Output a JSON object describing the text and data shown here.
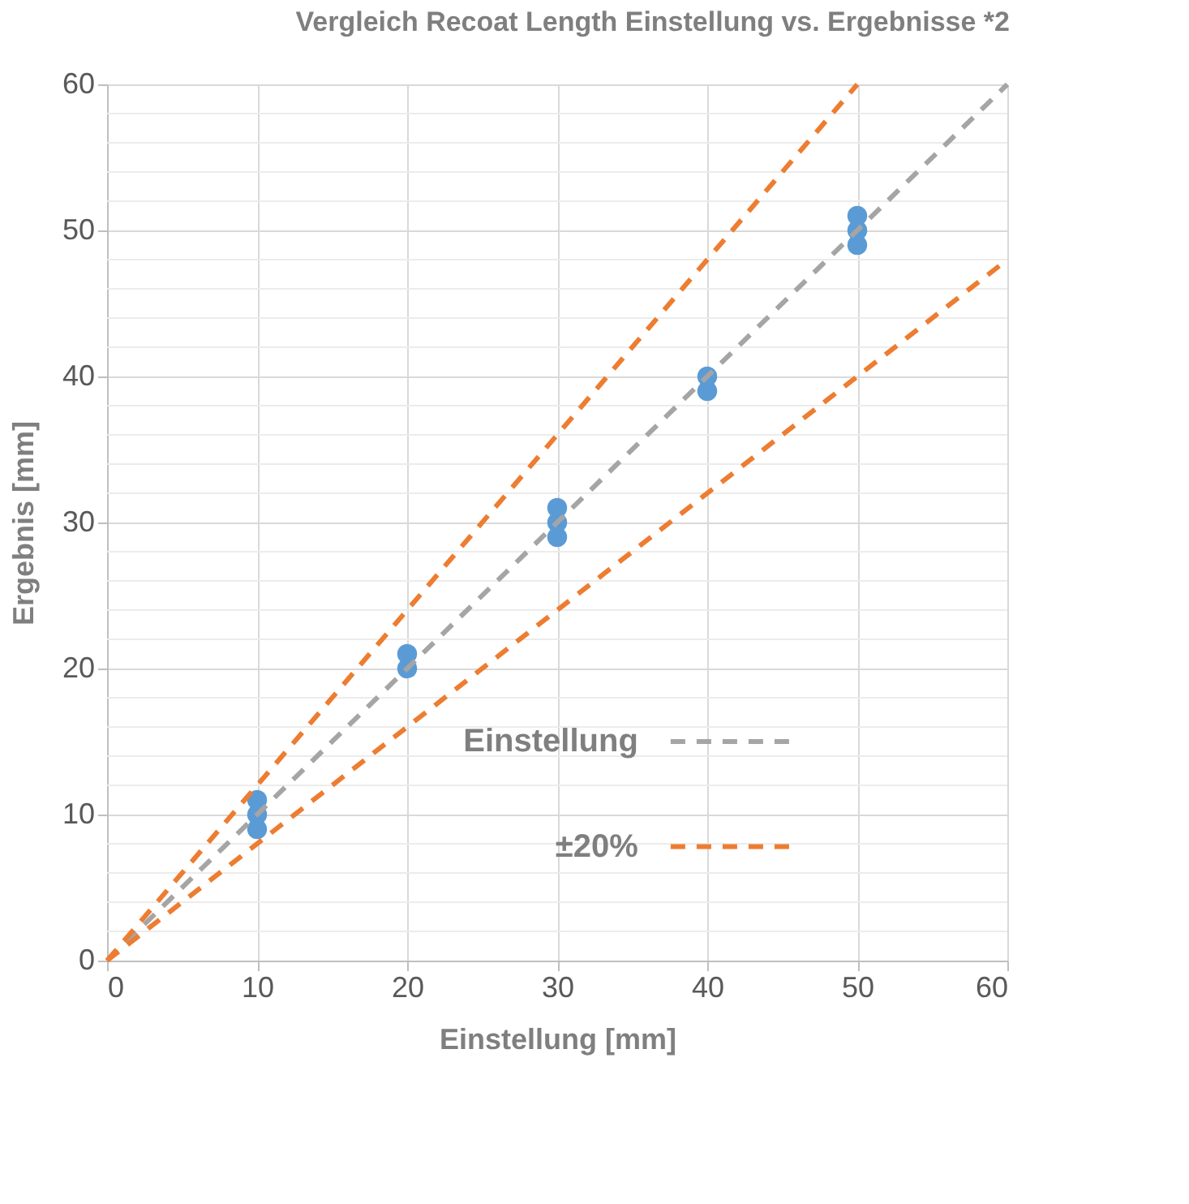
{
  "chart_data": {
    "type": "scatter",
    "title": "Vergleich Recoat Length Einstellung vs. Ergebnisse *2",
    "xlabel": "Einstellung [mm]",
    "ylabel": "Ergebnis [mm]",
    "series": [
      {
        "type": "scatter",
        "color": "#5b9bd5",
        "x": [
          10,
          10,
          10,
          20,
          20,
          30,
          30,
          30,
          40,
          40,
          50,
          50,
          50
        ],
        "values": [
          9,
          10,
          11,
          20,
          21,
          29,
          30,
          31,
          39,
          40,
          49,
          50,
          51
        ],
        "marker": "circle"
      },
      {
        "type": "line",
        "name": "Einstellung",
        "color": "#a5a5a5",
        "x": [
          0,
          60
        ],
        "values": [
          0,
          60
        ],
        "line_style": "dashed"
      },
      {
        "type": "line",
        "name": "±20%",
        "color": "#ed7d31",
        "x": [
          0,
          50
        ],
        "values": [
          0,
          60
        ],
        "line_style": "dashed"
      },
      {
        "type": "line",
        "color": "#ed7d31",
        "x": [
          0,
          60
        ],
        "values": [
          0,
          48
        ],
        "line_style": "dashed"
      }
    ],
    "xlim": [
      0,
      60
    ],
    "ylim": [
      0,
      60
    ],
    "xticks": [
      0,
      10,
      20,
      30,
      40,
      50,
      60
    ],
    "yticks": [
      0,
      {
        "value": 2,
        "label": null
      },
      {
        "value": 4,
        "label": null
      },
      {
        "value": 6,
        "label": null
      },
      {
        "value": 8,
        "label": null
      },
      10,
      {
        "value": 12,
        "label": null
      },
      {
        "value": 14,
        "label": null
      },
      {
        "value": 16,
        "label": null
      },
      {
        "value": 18,
        "label": null
      },
      20,
      {
        "value": 22,
        "label": null
      },
      {
        "value": 24,
        "label": null
      },
      {
        "value": 26,
        "label": null
      },
      {
        "value": 28,
        "label": null
      },
      30,
      {
        "value": 32,
        "label": null
      },
      {
        "value": 34,
        "label": null
      },
      {
        "value": 36,
        "label": null
      },
      {
        "value": 38,
        "label": null
      },
      40,
      {
        "value": 42,
        "label": null
      },
      {
        "value": 44,
        "label": null
      },
      {
        "value": 46,
        "label": null
      },
      {
        "value": 48,
        "label": null
      },
      50,
      {
        "value": 52,
        "label": null
      },
      {
        "value": 54,
        "label": null
      },
      {
        "value": 56,
        "label": null
      },
      {
        "value": 58,
        "label": null
      },
      60
    ],
    "grid": true,
    "legend": "bottom right"
  }
}
